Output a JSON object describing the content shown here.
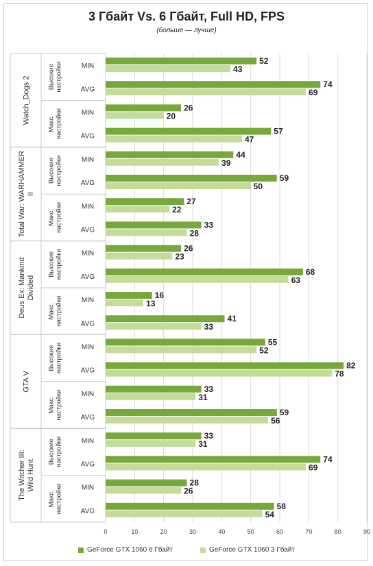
{
  "title": "3 Гбайт Vs. 6 Гбайт, Full HD, FPS",
  "subtitle": "(больше — лучше)",
  "colors": {
    "series6gb": "#77a83b",
    "series3gb": "#c3dc9a"
  },
  "legend": [
    "GeForce GTX 1060 6 Гбайт",
    "GeForce GTX 1060 3 Гбайт"
  ],
  "chart_data": {
    "type": "bar",
    "orientation": "horizontal",
    "title": "3 Гбайт Vs. 6 Гбайт, Full HD, FPS",
    "subtitle": "(больше — лучше)",
    "xlim": [
      0,
      90
    ],
    "x_ticks": [
      0,
      10,
      20,
      30,
      40,
      50,
      60,
      70,
      80,
      90
    ],
    "grid": true,
    "legend_position": "bottom",
    "series_names": [
      "GeForce GTX 1060 6 Гбайт",
      "GeForce GTX 1060 3 Гбайт"
    ],
    "games": [
      {
        "name": "Watch_Dogs 2",
        "settings": [
          {
            "name": "Высокие настройки",
            "rows": [
              {
                "metric": "MIN",
                "values": [
                  52,
                  43
                ]
              },
              {
                "metric": "AVG",
                "values": [
                  74,
                  69
                ]
              }
            ]
          },
          {
            "name": "Макс. настройки",
            "rows": [
              {
                "metric": "MIN",
                "values": [
                  26,
                  20
                ]
              },
              {
                "metric": "AVG",
                "values": [
                  57,
                  47
                ]
              }
            ]
          }
        ]
      },
      {
        "name": "Total War: WARHAMMER II",
        "settings": [
          {
            "name": "Высокие настройки",
            "rows": [
              {
                "metric": "MIN",
                "values": [
                  44,
                  39
                ]
              },
              {
                "metric": "AVG",
                "values": [
                  59,
                  50
                ]
              }
            ]
          },
          {
            "name": "Макс. настройки",
            "rows": [
              {
                "metric": "MIN",
                "values": [
                  27,
                  22
                ]
              },
              {
                "metric": "AVG",
                "values": [
                  33,
                  28
                ]
              }
            ]
          }
        ]
      },
      {
        "name": "Deus Ex: Mankind Divided",
        "settings": [
          {
            "name": "Высокие настройки",
            "rows": [
              {
                "metric": "MIN",
                "values": [
                  26,
                  23
                ]
              },
              {
                "metric": "AVG",
                "values": [
                  68,
                  63
                ]
              }
            ]
          },
          {
            "name": "Макс. настройки",
            "rows": [
              {
                "metric": "MIN",
                "values": [
                  16,
                  13
                ]
              },
              {
                "metric": "AVG",
                "values": [
                  41,
                  33
                ]
              }
            ]
          }
        ]
      },
      {
        "name": "GTA V",
        "settings": [
          {
            "name": "Высокие настройки",
            "rows": [
              {
                "metric": "MIN",
                "values": [
                  55,
                  52
                ]
              },
              {
                "metric": "AVG",
                "values": [
                  82,
                  78
                ]
              }
            ]
          },
          {
            "name": "Макс. настройки",
            "rows": [
              {
                "metric": "MIN",
                "values": [
                  33,
                  31
                ]
              },
              {
                "metric": "AVG",
                "values": [
                  59,
                  56
                ]
              }
            ]
          }
        ]
      },
      {
        "name": "The Witcher III: Wild Hunt",
        "settings": [
          {
            "name": "Высокие настройки",
            "rows": [
              {
                "metric": "MIN",
                "values": [
                  33,
                  31
                ]
              },
              {
                "metric": "AVG",
                "values": [
                  74,
                  69
                ]
              }
            ]
          },
          {
            "name": "Макс. настройки",
            "rows": [
              {
                "metric": "MIN",
                "values": [
                  28,
                  26
                ]
              },
              {
                "metric": "AVG",
                "values": [
                  58,
                  54
                ]
              }
            ]
          }
        ]
      }
    ]
  }
}
